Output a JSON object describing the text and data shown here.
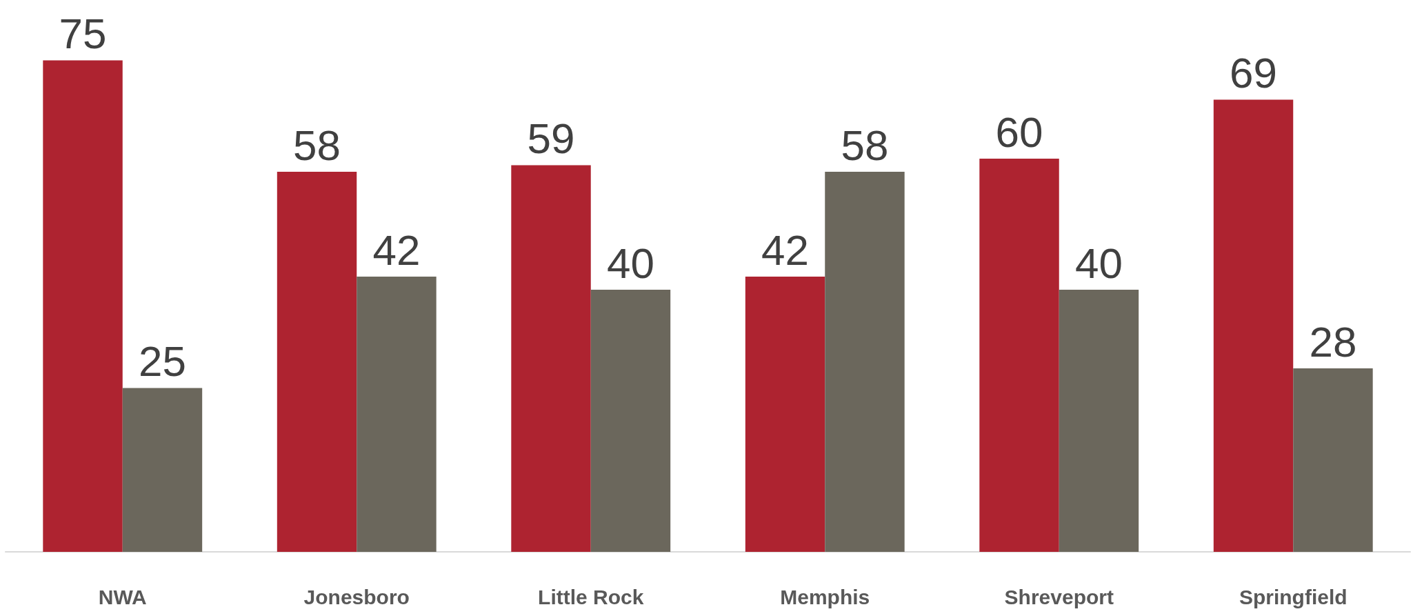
{
  "chart_data": {
    "type": "bar",
    "categories": [
      "NWA",
      "Jonesboro",
      "Little Rock",
      "Memphis",
      "Shreveport",
      "Springfield"
    ],
    "series": [
      {
        "color": "#ae2330",
        "values": [
          75,
          58,
          59,
          42,
          60,
          69
        ]
      },
      {
        "color": "#6b675c",
        "values": [
          25,
          42,
          40,
          58,
          40,
          28
        ]
      }
    ],
    "data_labels": true
  }
}
